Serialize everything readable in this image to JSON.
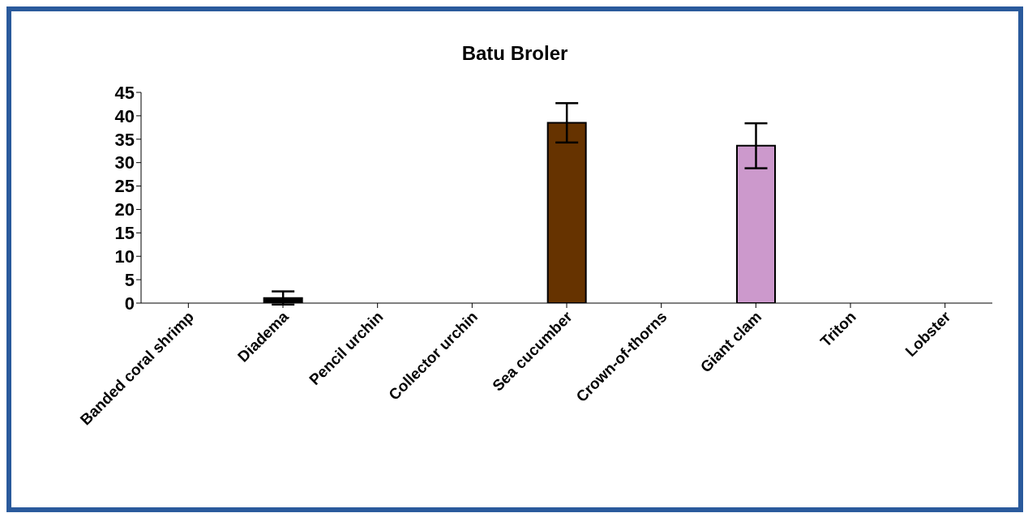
{
  "chart_data": {
    "type": "bar",
    "title": "Batu Broler",
    "categories": [
      "Banded coral shrimp",
      "Diadema",
      "Pencil urchin",
      "Collector urchin",
      "Sea cucumber",
      "Crown-of-thorns",
      "Giant clam",
      "Triton",
      "Lobster"
    ],
    "values": [
      0,
      1.1,
      0,
      0,
      38.5,
      0,
      33.6,
      0,
      0
    ],
    "colors": [
      "#000000",
      "#000000",
      "#000000",
      "#000000",
      "#663300",
      "#000000",
      "#cc99cc",
      "#000000",
      "#000000"
    ],
    "errors": [
      null,
      1.4,
      null,
      null,
      4.2,
      null,
      4.8,
      null,
      null
    ],
    "ylim": [
      0,
      45
    ],
    "yticks": [
      0,
      5,
      10,
      15,
      20,
      25,
      30,
      35,
      40,
      45
    ],
    "grid": false,
    "legend": false
  }
}
